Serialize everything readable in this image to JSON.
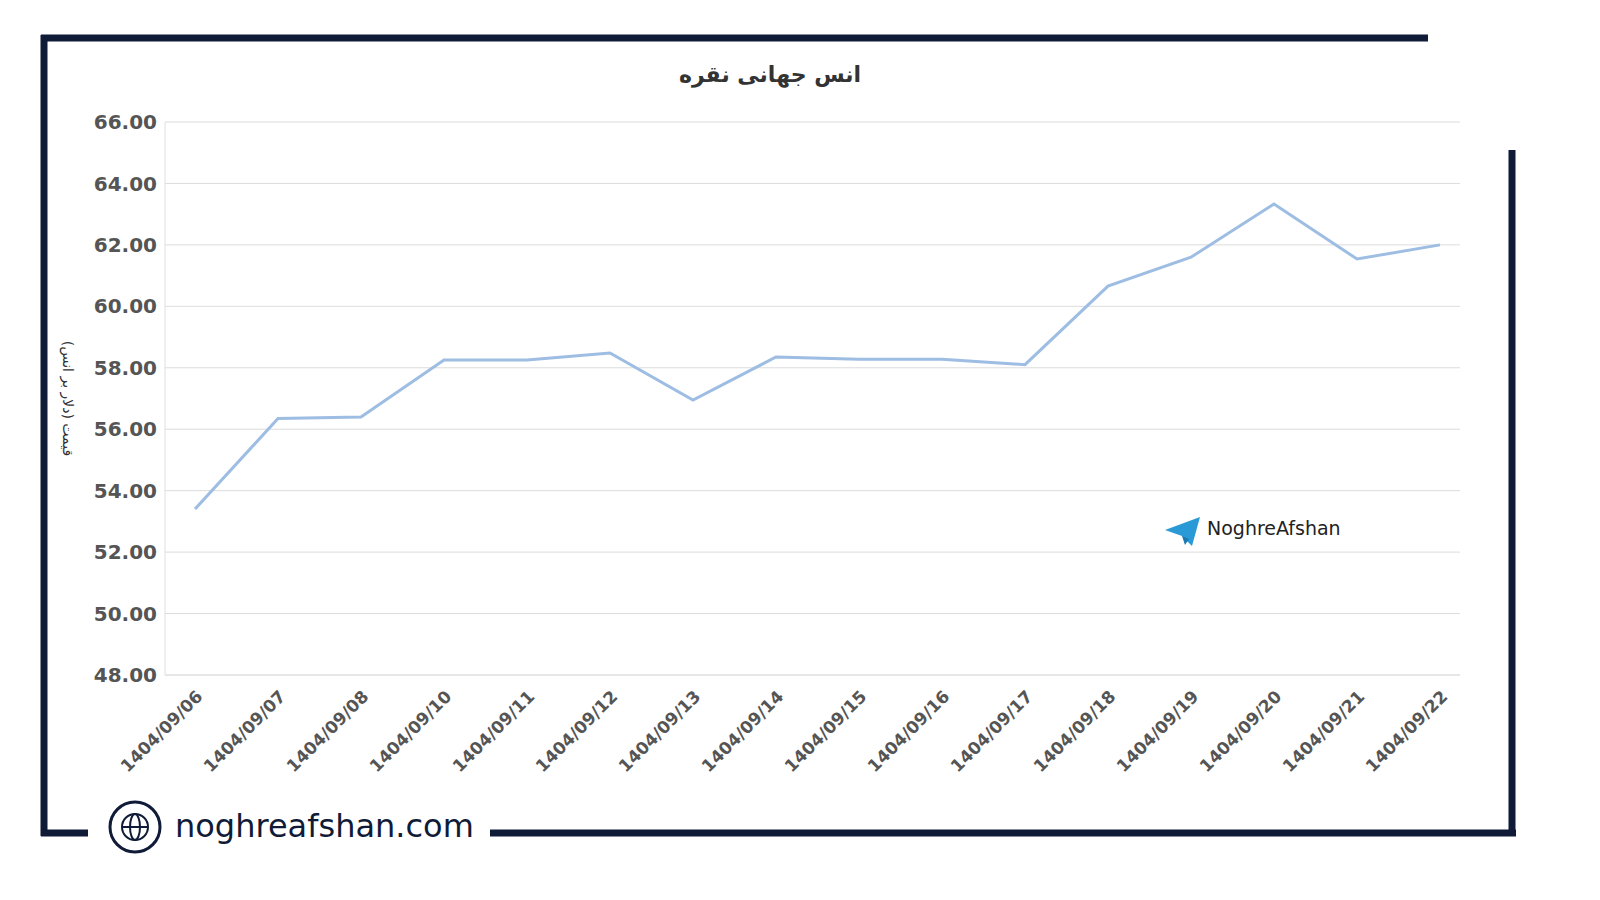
{
  "chart_data": {
    "type": "line",
    "title": "انس جهانی نقره",
    "y_label": "قیمت (دلار بر انس)",
    "categories": [
      "1404/09/06",
      "1404/09/07",
      "1404/09/08",
      "1404/09/10",
      "1404/09/11",
      "1404/09/12",
      "1404/09/13",
      "1404/09/14",
      "1404/09/15",
      "1404/09/16",
      "1404/09/17",
      "1404/09/18",
      "1404/09/19",
      "1404/09/20",
      "1404/09/21",
      "1404/09/22"
    ],
    "values": [
      53.4,
      56.35,
      56.4,
      58.25,
      58.25,
      58.48,
      56.95,
      58.35,
      58.28,
      58.28,
      58.1,
      60.66,
      61.6,
      63.33,
      61.54,
      62.0
    ],
    "color": "#9dbde3",
    "ylim": [
      48,
      66
    ],
    "yticks": [
      {
        "value": 48,
        "label": "48.00"
      },
      {
        "value": 50,
        "label": "50.00"
      },
      {
        "value": 52,
        "label": "52.00"
      },
      {
        "value": 54,
        "label": "54.00"
      },
      {
        "value": 56,
        "label": "56.00"
      },
      {
        "value": 58,
        "label": "58.00"
      },
      {
        "value": 60,
        "label": "60.00"
      },
      {
        "value": 62,
        "label": "62.00"
      },
      {
        "value": 64,
        "label": "64.00"
      },
      {
        "value": 66,
        "label": "66.00"
      }
    ],
    "grid": true,
    "annotations": [
      "NoghreAfshan",
      "noghreafshan.com"
    ]
  }
}
